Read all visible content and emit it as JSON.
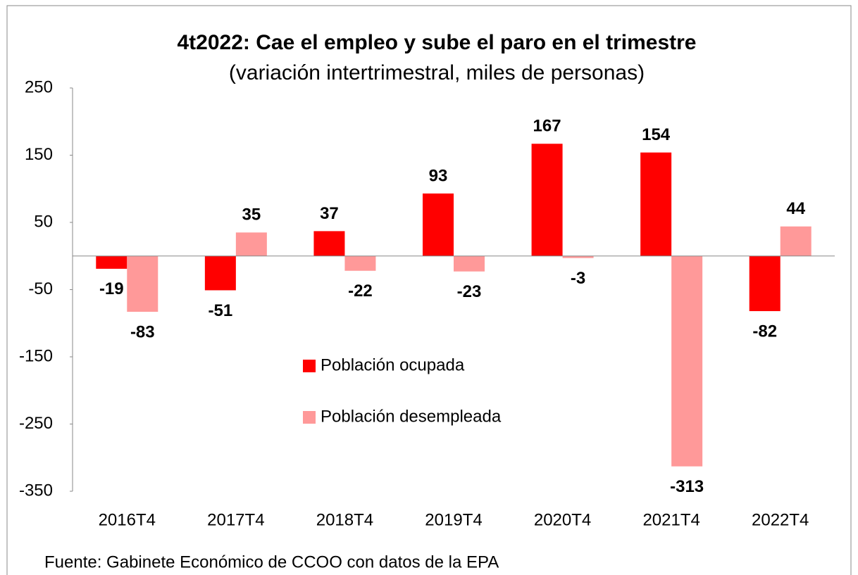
{
  "chart_data": {
    "type": "bar",
    "title": "4t2022: Cae el empleo y sube el paro en el trimestre",
    "subtitle": "(variación intertrimestral, miles de personas)",
    "source": "Fuente: Gabinete Económico de CCOO con datos de la EPA",
    "categories": [
      "2016T4",
      "2017T4",
      "2018T4",
      "2019T4",
      "2020T4",
      "2021T4",
      "2022T4"
    ],
    "series": [
      {
        "name": "Población ocupada",
        "color": "#ff0000",
        "values": [
          -19,
          -51,
          37,
          93,
          167,
          154,
          -82
        ]
      },
      {
        "name": "Población desempleada",
        "color": "#ff9999",
        "values": [
          -83,
          35,
          -22,
          -23,
          -3,
          -313,
          44
        ]
      }
    ],
    "ylim": [
      -350,
      250
    ],
    "yticks": [
      250,
      150,
      50,
      -50,
      -150,
      -250,
      -350
    ]
  }
}
